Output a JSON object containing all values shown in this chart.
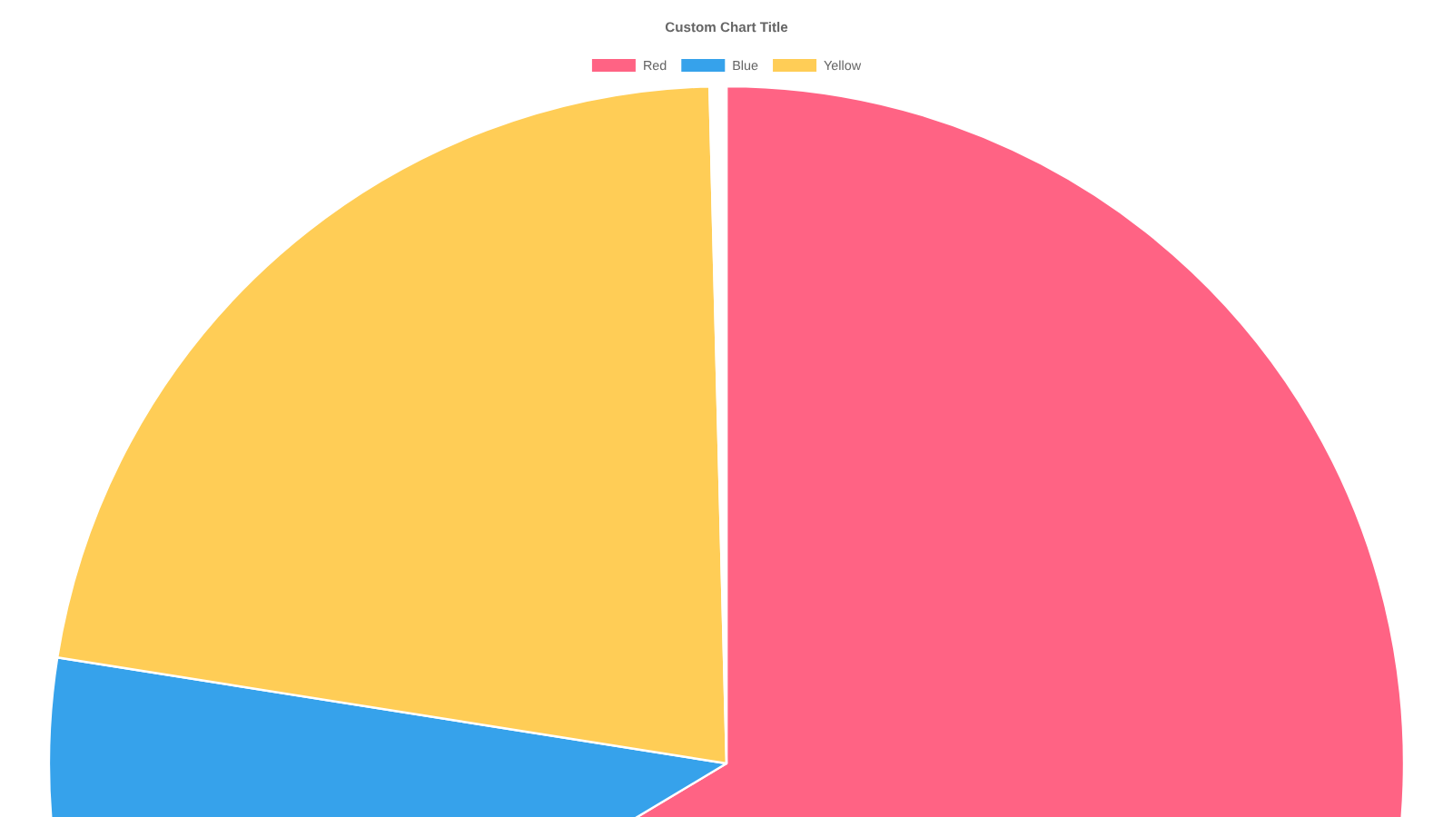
{
  "chart_data": {
    "type": "pie",
    "title": "Custom Chart Title",
    "categories": [
      "Red",
      "Blue",
      "Yellow",
      null
    ],
    "values": [
      66.4,
      11.1,
      22.1,
      0.4
    ],
    "colors": [
      "#ff6384",
      "#36a2eb",
      "#ffcd56",
      "#ffffff"
    ],
    "legend": "top"
  }
}
